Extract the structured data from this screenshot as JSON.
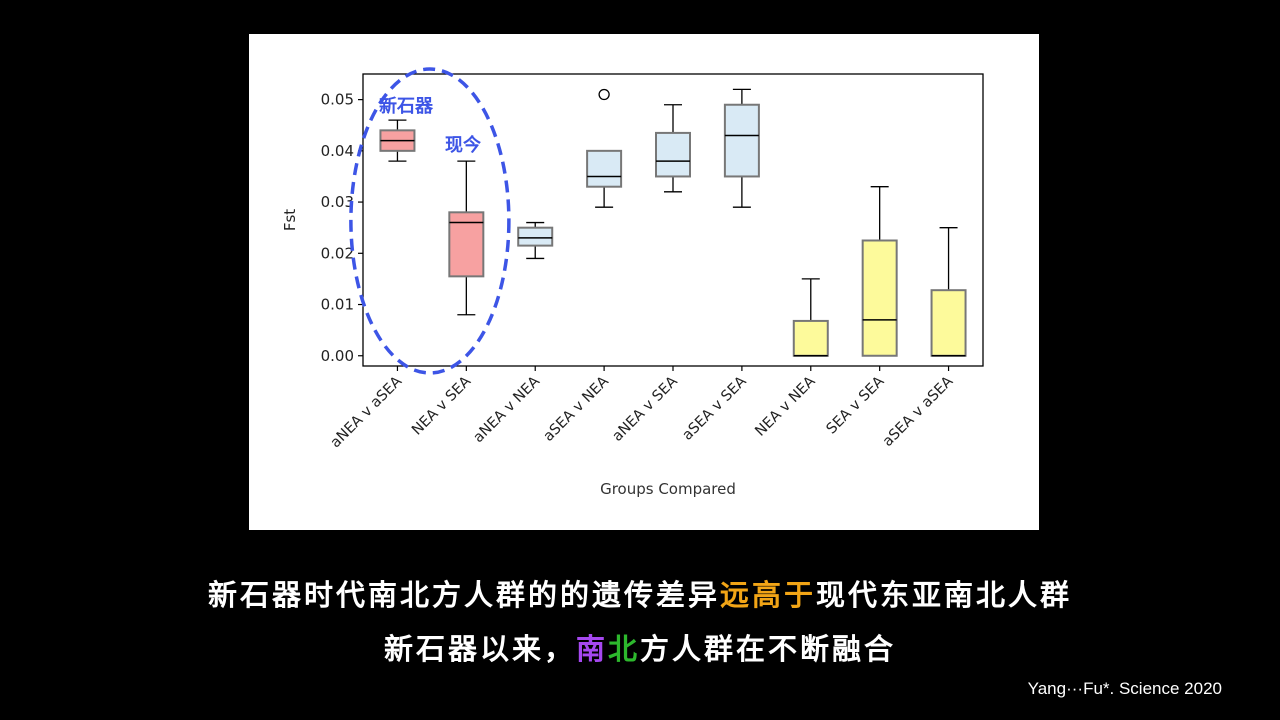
{
  "chart_data": {
    "type": "box",
    "xlabel": "Groups Compared",
    "ylabel": "Fst",
    "ylim": [
      -0.002,
      0.055
    ],
    "yticks": [
      0.0,
      0.01,
      0.02,
      0.03,
      0.04,
      0.05
    ],
    "ytick_labels": [
      "0.00",
      "0.01",
      "0.02",
      "0.03",
      "0.04",
      "0.05"
    ],
    "grid": false,
    "categories": [
      "aNEA v aSEA",
      "NEA v SEA",
      "aNEA v NEA",
      "aSEA v NEA",
      "aNEA v SEA",
      "aSEA v SEA",
      "NEA v NEA",
      "SEA v SEA",
      "aSEA v aSEA"
    ],
    "boxes": [
      {
        "min": 0.038,
        "q1": 0.04,
        "median": 0.042,
        "q3": 0.044,
        "max": 0.046,
        "outliers": [],
        "color": "#f7a1a1"
      },
      {
        "min": 0.008,
        "q1": 0.0155,
        "median": 0.026,
        "q3": 0.028,
        "max": 0.038,
        "outliers": [],
        "color": "#f7a1a1"
      },
      {
        "min": 0.019,
        "q1": 0.0215,
        "median": 0.023,
        "q3": 0.025,
        "max": 0.026,
        "outliers": [],
        "color": "#d9eaf5"
      },
      {
        "min": 0.029,
        "q1": 0.033,
        "median": 0.035,
        "q3": 0.04,
        "max": 0.04,
        "outliers": [
          0.051
        ],
        "color": "#d9eaf5"
      },
      {
        "min": 0.032,
        "q1": 0.035,
        "median": 0.038,
        "q3": 0.0435,
        "max": 0.049,
        "outliers": [],
        "color": "#d9eaf5"
      },
      {
        "min": 0.029,
        "q1": 0.035,
        "median": 0.043,
        "q3": 0.049,
        "max": 0.052,
        "outliers": [],
        "color": "#d9eaf5"
      },
      {
        "min": 0.0,
        "q1": 0.0,
        "median": 0.0,
        "q3": 0.0068,
        "max": 0.015,
        "outliers": [],
        "color": "#fdfa9b"
      },
      {
        "min": 0.0,
        "q1": 0.0,
        "median": 0.007,
        "q3": 0.0225,
        "max": 0.033,
        "outliers": [],
        "color": "#fdfa9b"
      },
      {
        "min": 0.0,
        "q1": 0.0,
        "median": 0.0,
        "q3": 0.0128,
        "max": 0.025,
        "outliers": [],
        "color": "#fdfa9b"
      }
    ],
    "annotations": [
      {
        "text": "新石器",
        "color": "#3d55e6"
      },
      {
        "text": "现今",
        "color": "#3d55e6"
      }
    ]
  },
  "caption": {
    "line1_a": "新石器时代南北方人群的的遗传差异",
    "line1_b": "远高于",
    "line1_c": "现代东亚南北人群",
    "line2_a": "新石器以来，",
    "line2_b": "南",
    "line2_c": "北",
    "line2_d": "方人群在不断融合",
    "highlight_orange": "#f2a516",
    "highlight_purple": "#a648f0",
    "highlight_green": "#2db82d"
  },
  "citation": "Yang···Fu*. Science 2020",
  "colors": {
    "ellipse": "#3d55e6"
  }
}
